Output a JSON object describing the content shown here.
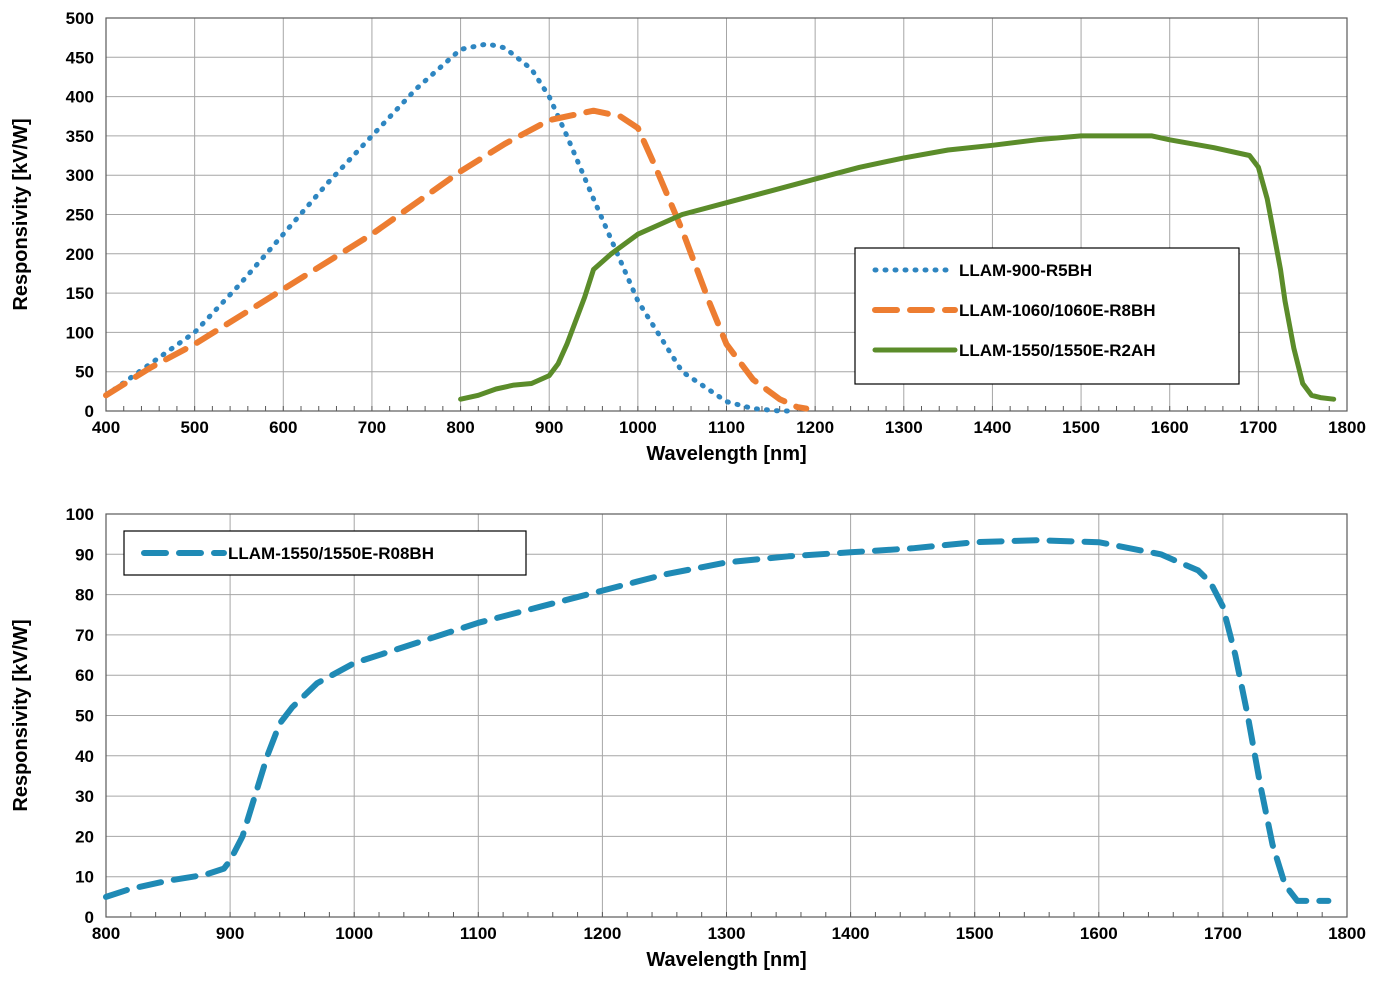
{
  "chart_data": [
    {
      "type": "line",
      "xlabel": "Wavelength [nm]",
      "ylabel": "Responsivity [kV/W]",
      "xlim": [
        400,
        1800
      ],
      "ylim": [
        0,
        500
      ],
      "xticks": [
        400,
        500,
        600,
        700,
        800,
        900,
        1000,
        1100,
        1200,
        1300,
        1400,
        1500,
        1600,
        1700,
        1800
      ],
      "yticks": [
        0,
        50,
        100,
        150,
        200,
        250,
        300,
        350,
        400,
        450,
        500
      ],
      "grid": true,
      "legend_position": "center-right",
      "series": [
        {
          "name": "LLAM-900-R5BH",
          "color": "#2E86C1",
          "style": "dotted",
          "x": [
            400,
            450,
            500,
            550,
            600,
            650,
            700,
            750,
            800,
            830,
            850,
            880,
            900,
            920,
            950,
            1000,
            1050,
            1100,
            1130,
            1160,
            1170
          ],
          "y": [
            20,
            60,
            100,
            160,
            225,
            290,
            350,
            410,
            460,
            467,
            462,
            435,
            400,
            350,
            270,
            140,
            50,
            12,
            3,
            0,
            0
          ]
        },
        {
          "name": "LLAM-1060/1060E-R8BH",
          "color": "#ED7D31",
          "style": "dashed",
          "x": [
            400,
            450,
            500,
            600,
            700,
            800,
            850,
            900,
            950,
            980,
            1000,
            1020,
            1050,
            1080,
            1100,
            1130,
            1160,
            1180,
            1190
          ],
          "y": [
            20,
            55,
            85,
            155,
            225,
            305,
            340,
            370,
            382,
            375,
            360,
            310,
            230,
            140,
            85,
            40,
            15,
            5,
            3
          ]
        },
        {
          "name": "LLAM-1550/1550E-R2AH",
          "color": "#5B8C2A",
          "style": "solid",
          "x": [
            800,
            820,
            840,
            860,
            880,
            900,
            910,
            920,
            940,
            950,
            970,
            1000,
            1050,
            1100,
            1150,
            1200,
            1250,
            1300,
            1350,
            1400,
            1450,
            1500,
            1550,
            1580,
            1600,
            1650,
            1690,
            1700,
            1710,
            1720,
            1725,
            1730,
            1740,
            1750,
            1760,
            1770,
            1785
          ],
          "y": [
            15,
            20,
            28,
            33,
            35,
            45,
            60,
            85,
            145,
            180,
            200,
            225,
            250,
            265,
            280,
            295,
            310,
            322,
            332,
            338,
            345,
            350,
            350,
            350,
            345,
            335,
            325,
            310,
            270,
            210,
            180,
            140,
            80,
            35,
            20,
            17,
            15
          ]
        }
      ]
    },
    {
      "type": "line",
      "xlabel": "Wavelength [nm]",
      "ylabel": "Responsivity [kV/W]",
      "xlim": [
        800,
        1800
      ],
      "ylim": [
        0,
        100
      ],
      "xticks": [
        800,
        900,
        1000,
        1100,
        1200,
        1300,
        1400,
        1500,
        1600,
        1700,
        1800
      ],
      "yticks": [
        0,
        10,
        20,
        30,
        40,
        50,
        60,
        70,
        80,
        90,
        100
      ],
      "grid": true,
      "legend_position": "top-left",
      "series": [
        {
          "name": "LLAM-1550/1550E-R08BH",
          "color": "#1F8AB5",
          "style": "dashed",
          "x": [
            800,
            820,
            850,
            880,
            895,
            900,
            910,
            920,
            930,
            940,
            950,
            970,
            1000,
            1050,
            1100,
            1150,
            1200,
            1250,
            1300,
            1350,
            1400,
            1450,
            1500,
            1550,
            1600,
            1650,
            1680,
            1690,
            1700,
            1710,
            1720,
            1730,
            1740,
            1750,
            1760,
            1770,
            1785
          ],
          "y": [
            5,
            7,
            9,
            10.5,
            12,
            14,
            20,
            30,
            40,
            48,
            52,
            58,
            63,
            68,
            73,
            77,
            81,
            85,
            88,
            89.5,
            90.5,
            91.5,
            93,
            93.5,
            93,
            90,
            86,
            83,
            77,
            65,
            50,
            33,
            18,
            8,
            4,
            4,
            4
          ]
        }
      ]
    }
  ]
}
